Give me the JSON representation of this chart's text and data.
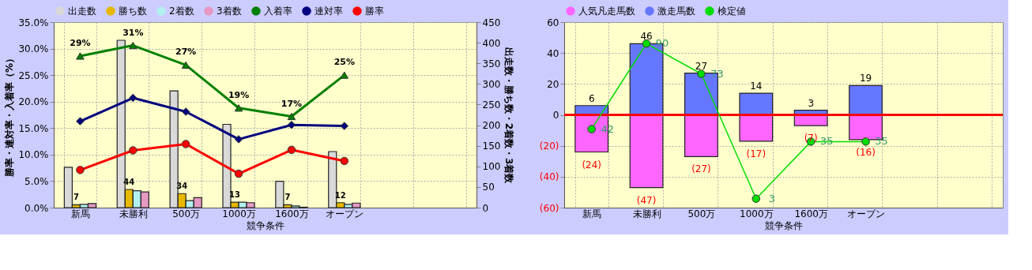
{
  "chart_data": [
    {
      "type": "bar",
      "xlabel": "競争条件",
      "ylabel": "勝率・連対率・入着率（%）",
      "y2label": "出走数・勝ち数・2着数・3着数",
      "categories": [
        "新馬",
        "未勝利",
        "500万",
        "1000万",
        "1600万",
        "オープン",
        null,
        null
      ],
      "ylim": [
        0,
        35
      ],
      "yticks": [
        {
          "value": 0,
          "label": "0.0%"
        },
        {
          "value": 5,
          "label": "5.0%"
        },
        {
          "value": 10,
          "label": "10.0%"
        },
        {
          "value": 15,
          "label": "15.0%"
        },
        {
          "value": 20,
          "label": "20.0%"
        },
        {
          "value": 25,
          "label": "25.0%"
        },
        {
          "value": 30,
          "label": "30.0%"
        },
        {
          "value": 35,
          "label": "35.0%"
        }
      ],
      "y2lim": [
        0,
        450
      ],
      "y2ticks": [
        0,
        50,
        100,
        150,
        200,
        250,
        300,
        350,
        400,
        450
      ],
      "grid": true,
      "legend": "top",
      "series": [
        {
          "name": "出走数",
          "color": "#d9d9d9",
          "axis": "y2",
          "values": [
            98,
            406,
            283,
            202,
            64,
            136,
            null,
            null
          ]
        },
        {
          "name": "勝ち数",
          "color": "#e6b800",
          "axis": "y2",
          "values": [
            7,
            44,
            34,
            13,
            7,
            12,
            null,
            null
          ],
          "value_labels": [
            "7",
            "44",
            "34",
            "13",
            "7",
            "12",
            null,
            null
          ]
        },
        {
          "name": "2着数",
          "color": "#b3f0f0",
          "axis": "y2",
          "values": [
            8,
            41,
            17,
            13,
            4,
            8,
            null,
            null
          ]
        },
        {
          "name": "3着数",
          "color": "#e699c2",
          "axis": "y2",
          "values": [
            10,
            38,
            24,
            12,
            1,
            11,
            null,
            null
          ]
        },
        {
          "name": "入着率",
          "type": "line",
          "color": "#008000",
          "marker": "triangle",
          "values": [
            28.6,
            30.6,
            26.9,
            18.8,
            17.2,
            25.0,
            null,
            null
          ],
          "value_labels": [
            "29%",
            "31%",
            "27%",
            "19%",
            "17%",
            "25%",
            null,
            null
          ]
        },
        {
          "name": "連対率",
          "type": "line",
          "color": "#000080",
          "marker": "diamond",
          "values": [
            16.3,
            20.7,
            18.1,
            12.9,
            15.6,
            15.4,
            null,
            null
          ]
        },
        {
          "name": "勝率",
          "type": "line",
          "color": "#ff0000",
          "marker": "circle",
          "values": [
            7.1,
            10.8,
            12.0,
            6.4,
            10.9,
            8.8,
            null,
            null
          ]
        }
      ]
    },
    {
      "type": "bar",
      "stacked": true,
      "xlabel": "競争条件",
      "categories": [
        "新馬",
        "未勝利",
        "500万",
        "1000万",
        "1600万",
        "オープン",
        null,
        null
      ],
      "ylim": [
        -60,
        60
      ],
      "yticks": [
        {
          "value": -60,
          "label": "(60)"
        },
        {
          "value": -40,
          "label": "(40)"
        },
        {
          "value": -20,
          "label": "(20)"
        },
        0,
        20,
        40,
        60
      ],
      "y2lim": [
        -2,
        102
      ],
      "grid": true,
      "legend": "top",
      "ref_lines": [
        {
          "axis": "y",
          "value": 0,
          "color": "#ff0000"
        }
      ],
      "series": [
        {
          "name": "人気凡走馬数",
          "color": "#ff66ff",
          "values": [
            -24,
            -47,
            -27,
            -17,
            -7,
            -16,
            null,
            null
          ],
          "value_labels": [
            "(24)",
            "(47)",
            "(27)",
            "(17)",
            "(7)",
            "(16)",
            null,
            null
          ]
        },
        {
          "name": "激走馬数",
          "color": "#6677ff",
          "values": [
            6,
            46,
            27,
            14,
            3,
            19,
            null,
            null
          ],
          "value_labels": [
            "6",
            "46",
            "27",
            "14",
            "3",
            "19",
            null,
            null
          ]
        },
        {
          "name": "検定値",
          "type": "line",
          "axis": "y2",
          "color": "#00dd00",
          "marker": "circle",
          "values": [
            42,
            90,
            73,
            3,
            35,
            35,
            null,
            null
          ],
          "value_labels": [
            "42",
            "90",
            "73",
            "3",
            "35",
            "35",
            null,
            null
          ]
        }
      ]
    }
  ]
}
